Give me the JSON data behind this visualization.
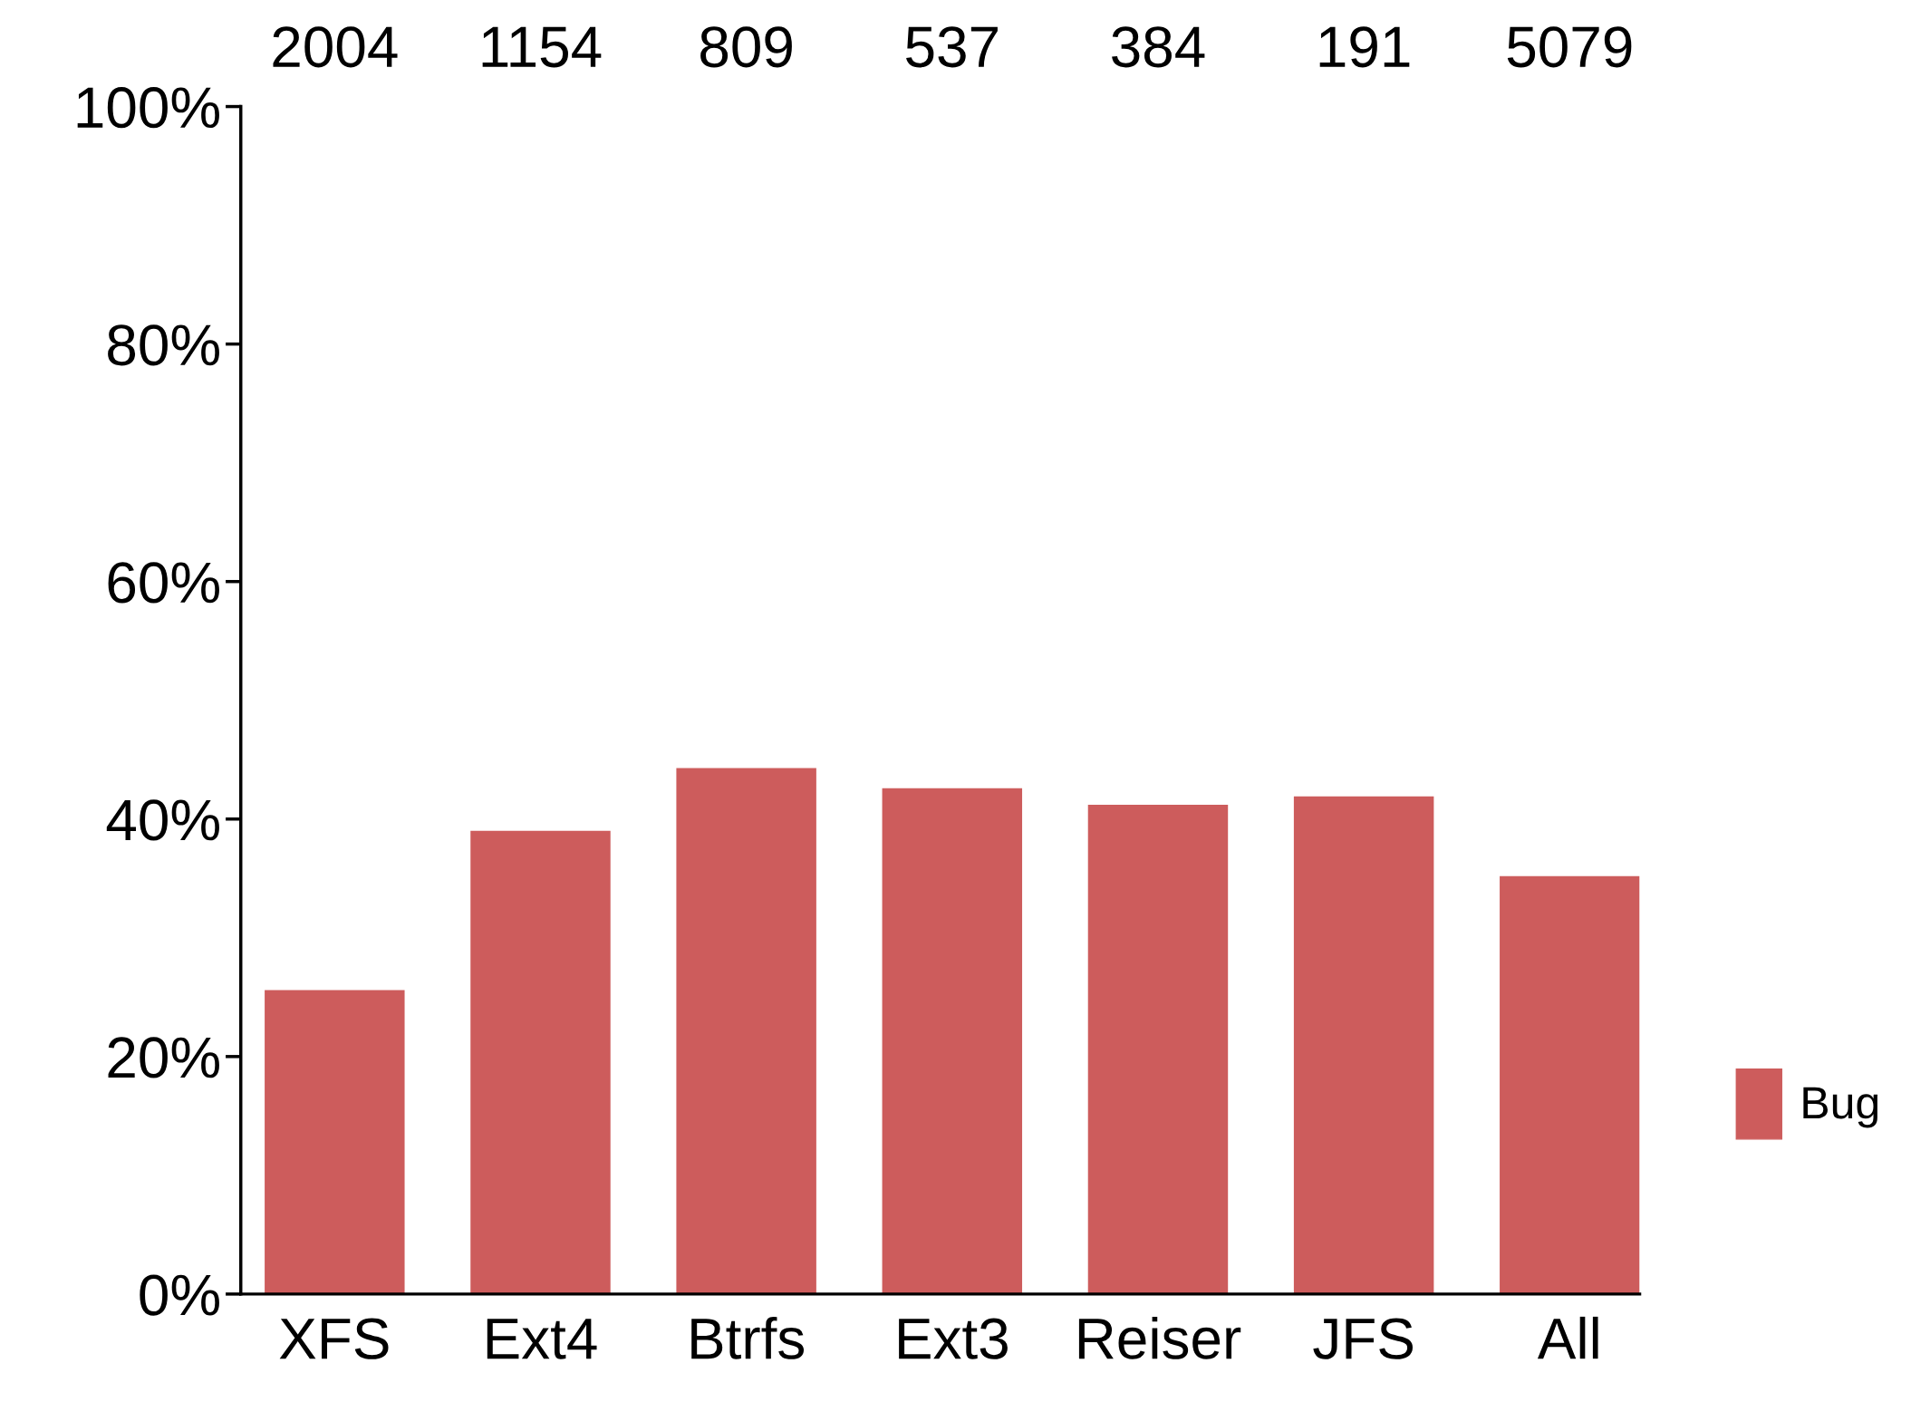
{
  "chart_data": {
    "type": "bar",
    "categories": [
      "XFS",
      "Ext4",
      "Btrfs",
      "Ext3",
      "Reiser",
      "JFS",
      "All"
    ],
    "series": [
      {
        "name": "Bug",
        "color": "#cd5c5c",
        "values": [
          25.6,
          39.0,
          44.3,
          42.6,
          41.2,
          41.9,
          35.2
        ]
      }
    ],
    "ylim": [
      0,
      100
    ],
    "yticks": [
      {
        "value": 0,
        "label": "0%"
      },
      {
        "value": 20,
        "label": "20%"
      },
      {
        "value": 40,
        "label": "40%"
      },
      {
        "value": 60,
        "label": "60%"
      },
      {
        "value": 80,
        "label": "80%"
      },
      {
        "value": 100,
        "label": "100%"
      }
    ],
    "annotations": [
      "2004",
      "1154",
      "809",
      "537",
      "384",
      "191",
      "5079"
    ],
    "grid": false,
    "legend": "right"
  }
}
